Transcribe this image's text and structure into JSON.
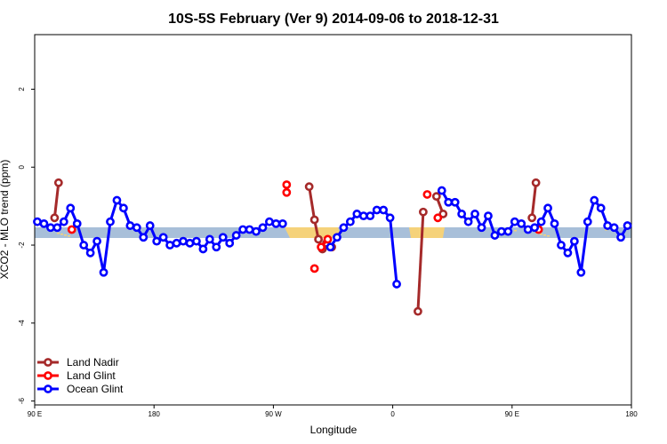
{
  "chart_data": {
    "type": "line",
    "title": "10S-5S February (Ver 9)   2014-09-06 to 2018-12-31",
    "xlabel": "Longitude",
    "ylabel": "XCO2 - MLO trend (ppm)",
    "xlim": [
      90,
      540
    ],
    "ylim": [
      -6.1,
      3.4
    ],
    "x_ticks": [
      {
        "value": 90,
        "label": "90 E"
      },
      {
        "value": 180,
        "label": "180"
      },
      {
        "value": 270,
        "label": "90 W"
      },
      {
        "value": 360,
        "label": "0"
      },
      {
        "value": 450,
        "label": "90 E"
      },
      {
        "value": 540,
        "label": "180"
      }
    ],
    "y_ticks": [
      {
        "value": -6,
        "label": "-6"
      },
      {
        "value": -4,
        "label": "-4"
      },
      {
        "value": -2,
        "label": "-2"
      },
      {
        "value": 0,
        "label": "0"
      },
      {
        "value": 2,
        "label": "2"
      }
    ],
    "legend_position": "bottom-left",
    "series": [
      {
        "name": "Land Nadir",
        "color": "#A52A2A",
        "segments": [
          [
            [
              105,
              -1.3
            ],
            [
              108,
              -0.4
            ]
          ],
          [
            [
              297,
              -0.5
            ],
            [
              301,
              -1.35
            ],
            [
              304,
              -1.85
            ],
            [
              307,
              -2.1
            ],
            [
              310,
              -1.95
            ],
            [
              314,
              -2.05
            ]
          ],
          [
            [
              379,
              -3.7
            ],
            [
              383,
              -1.15
            ]
          ],
          [
            [
              393,
              -0.75
            ],
            [
              398,
              -1.2
            ]
          ],
          [
            [
              465,
              -1.3
            ],
            [
              468,
              -0.4
            ]
          ]
        ]
      },
      {
        "name": "Land Glint",
        "color": "#FF0000",
        "segments": [
          [
            [
              118,
              -1.6
            ]
          ],
          [
            [
              280,
              -0.45
            ],
            [
              280,
              -0.65
            ]
          ],
          [
            [
              301,
              -2.6
            ]
          ],
          [
            [
              306,
              -2.05
            ],
            [
              311,
              -1.85
            ]
          ],
          [
            [
              386,
              -0.7
            ]
          ],
          [
            [
              394,
              -1.3
            ]
          ],
          [
            [
              470,
              -1.6
            ]
          ]
        ]
      },
      {
        "name": "Ocean Glint",
        "color": "#0000FF",
        "segments": [
          [
            [
              92,
              -1.4
            ],
            [
              97,
              -1.45
            ],
            [
              102,
              -1.55
            ],
            [
              107,
              -1.55
            ],
            [
              112,
              -1.4
            ],
            [
              117,
              -1.05
            ],
            [
              122,
              -1.45
            ],
            [
              127,
              -2.0
            ],
            [
              132,
              -2.2
            ],
            [
              137,
              -1.9
            ],
            [
              142,
              -2.7
            ],
            [
              147,
              -1.4
            ],
            [
              152,
              -0.85
            ],
            [
              157,
              -1.05
            ],
            [
              162,
              -1.5
            ],
            [
              167,
              -1.55
            ],
            [
              172,
              -1.8
            ],
            [
              177,
              -1.5
            ],
            [
              182,
              -1.9
            ],
            [
              187,
              -1.8
            ],
            [
              192,
              -2.0
            ],
            [
              197,
              -1.95
            ],
            [
              202,
              -1.9
            ],
            [
              207,
              -1.95
            ],
            [
              212,
              -1.9
            ],
            [
              217,
              -2.1
            ],
            [
              222,
              -1.85
            ],
            [
              227,
              -2.05
            ],
            [
              232,
              -1.8
            ],
            [
              237,
              -1.95
            ],
            [
              242,
              -1.75
            ],
            [
              247,
              -1.6
            ],
            [
              252,
              -1.6
            ],
            [
              257,
              -1.65
            ],
            [
              262,
              -1.55
            ],
            [
              267,
              -1.4
            ],
            [
              272,
              -1.45
            ],
            [
              277,
              -1.45
            ]
          ],
          [
            [
              313,
              -2.05
            ],
            [
              318,
              -1.8
            ],
            [
              323,
              -1.55
            ],
            [
              328,
              -1.4
            ],
            [
              333,
              -1.2
            ],
            [
              338,
              -1.25
            ],
            [
              343,
              -1.25
            ],
            [
              348,
              -1.1
            ],
            [
              353,
              -1.1
            ],
            [
              358,
              -1.3
            ],
            [
              363,
              -3.0
            ]
          ],
          [
            [
              397,
              -0.6
            ],
            [
              402,
              -0.9
            ],
            [
              407,
              -0.9
            ],
            [
              412,
              -1.2
            ],
            [
              417,
              -1.4
            ],
            [
              422,
              -1.2
            ],
            [
              427,
              -1.55
            ],
            [
              432,
              -1.25
            ],
            [
              437,
              -1.75
            ],
            [
              442,
              -1.65
            ],
            [
              447,
              -1.65
            ],
            [
              452,
              -1.4
            ],
            [
              457,
              -1.45
            ],
            [
              462,
              -1.6
            ],
            [
              467,
              -1.55
            ],
            [
              472,
              -1.4
            ],
            [
              477,
              -1.05
            ],
            [
              482,
              -1.45
            ],
            [
              487,
              -2.0
            ],
            [
              492,
              -2.2
            ],
            [
              497,
              -1.9
            ],
            [
              502,
              -2.7
            ],
            [
              507,
              -1.4
            ],
            [
              512,
              -0.85
            ],
            [
              517,
              -1.05
            ],
            [
              522,
              -1.5
            ],
            [
              527,
              -1.55
            ],
            [
              532,
              -1.8
            ],
            [
              537,
              -1.5
            ]
          ]
        ]
      }
    ]
  }
}
